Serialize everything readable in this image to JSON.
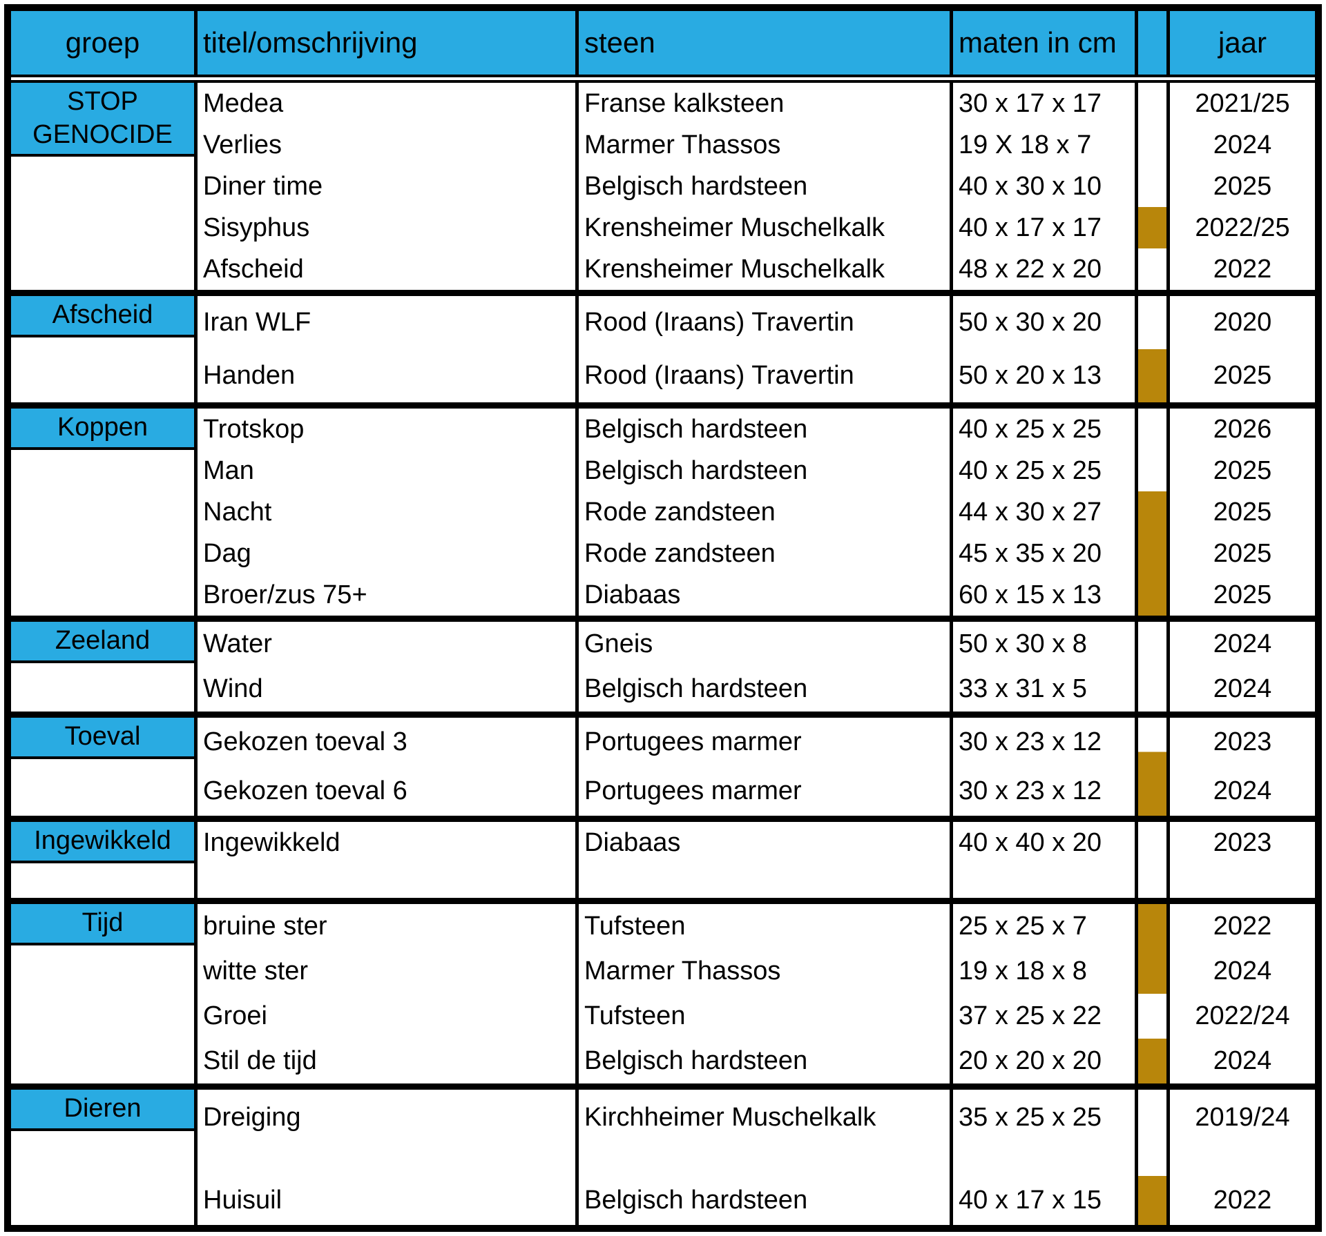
{
  "colors": {
    "header_bg": "#29abe2",
    "group_bg": "#29abe2",
    "marker_gold": "#b8860b"
  },
  "header": {
    "groep": "groep",
    "titel": "titel/omschrijving",
    "steen": "steen",
    "maten": "maten in cm",
    "jaar": "jaar"
  },
  "groups": [
    {
      "label": "STOP GENOCIDE",
      "rows": [
        {
          "titel": "Medea",
          "steen": "Franse kalksteen",
          "maten": "30 x 17 x 17",
          "gold": false,
          "jaar": "2021/25"
        },
        {
          "titel": "Verlies",
          "steen": "Marmer Thassos",
          "maten": "19 X 18 x 7",
          "gold": false,
          "jaar": "2024"
        },
        {
          "titel": "Diner time",
          "steen": "Belgisch hardsteen",
          "maten": "40 x 30 x 10",
          "gold": false,
          "jaar": "2025"
        },
        {
          "titel": "Sisyphus",
          "steen": "Krensheimer Muschelkalk",
          "maten": "40 x 17 x 17",
          "gold": true,
          "jaar": "2022/25"
        },
        {
          "titel": "Afscheid",
          "steen": "Krensheimer Muschelkalk",
          "maten": "48 x 22 x 20",
          "gold": false,
          "jaar": "2022"
        }
      ]
    },
    {
      "label": "Afscheid",
      "rows": [
        {
          "titel": "Iran WLF",
          "steen": "Rood (Iraans) Travertin",
          "maten": "50 x 30 x 20",
          "gold": false,
          "jaar": "2020"
        },
        {
          "titel": "Handen",
          "steen": "Rood (Iraans) Travertin",
          "maten": "50 x 20 x 13",
          "gold": true,
          "jaar": "2025"
        }
      ]
    },
    {
      "label": "Koppen",
      "rows": [
        {
          "titel": "Trotskop",
          "steen": "Belgisch hardsteen",
          "maten": "40 x 25 x 25",
          "gold": false,
          "jaar": "2026"
        },
        {
          "titel": "Man",
          "steen": "Belgisch hardsteen",
          "maten": "40 x 25 x 25",
          "gold": false,
          "jaar": "2025"
        },
        {
          "titel": "Nacht",
          "steen": "Rode zandsteen",
          "maten": "44 x 30 x 27",
          "gold": true,
          "jaar": "2025"
        },
        {
          "titel": "Dag",
          "steen": "Rode zandsteen",
          "maten": "45 x 35 x 20",
          "gold": true,
          "jaar": "2025"
        },
        {
          "titel": "Broer/zus 75+",
          "steen": "Diabaas",
          "maten": "60 x 15 x 13",
          "gold": true,
          "jaar": "2025"
        }
      ]
    },
    {
      "label": "Zeeland",
      "rows": [
        {
          "titel": "Water",
          "steen": "Gneis",
          "maten": "50 x 30 x 8",
          "gold": false,
          "jaar": "2024"
        },
        {
          "titel": "Wind",
          "steen": "Belgisch hardsteen",
          "maten": "33 x 31 x 5",
          "gold": false,
          "jaar": "2024"
        }
      ]
    },
    {
      "label": "Toeval",
      "rows": [
        {
          "titel": "Gekozen toeval 3",
          "steen": "Portugees marmer",
          "maten": "30 x 23 x 12",
          "gold": "half",
          "jaar": "2023"
        },
        {
          "titel": "Gekozen toeval 6",
          "steen": "Portugees marmer",
          "maten": "30 x 23 x 12",
          "gold": true,
          "jaar": "2024"
        }
      ]
    },
    {
      "label": "Ingewikkeld",
      "rows": [
        {
          "titel": "Ingewikkeld",
          "steen": "Diabaas",
          "maten": "40 x 40 x 20",
          "gold": false,
          "jaar": "2023"
        }
      ]
    },
    {
      "label": "Tijd",
      "rows": [
        {
          "titel": "bruine ster",
          "steen": "Tufsteen",
          "maten": "25 x 25 x 7",
          "gold": true,
          "jaar": "2022"
        },
        {
          "titel": "witte ster",
          "steen": "Marmer Thassos",
          "maten": "19 x 18 x 8",
          "gold": true,
          "jaar": "2024"
        },
        {
          "titel": "Groei",
          "steen": "Tufsteen",
          "maten": "37 x 25 x 22",
          "gold": false,
          "jaar": "2022/24"
        },
        {
          "titel": "Stil de tijd",
          "steen": "Belgisch hardsteen",
          "maten": "20 x 20 x 20",
          "gold": true,
          "jaar": "2024"
        }
      ]
    },
    {
      "label": "Dieren",
      "rows": [
        {
          "titel": "Dreiging",
          "steen": "Kirchheimer Muschelkalk",
          "maten": "35 x 25 x 25",
          "gold": false,
          "jaar": "2019/24"
        },
        {
          "titel": "Huisuil",
          "steen": "Belgisch hardsteen",
          "maten": "40 x 17 x 15",
          "gold": true,
          "jaar": "2022"
        }
      ]
    }
  ]
}
